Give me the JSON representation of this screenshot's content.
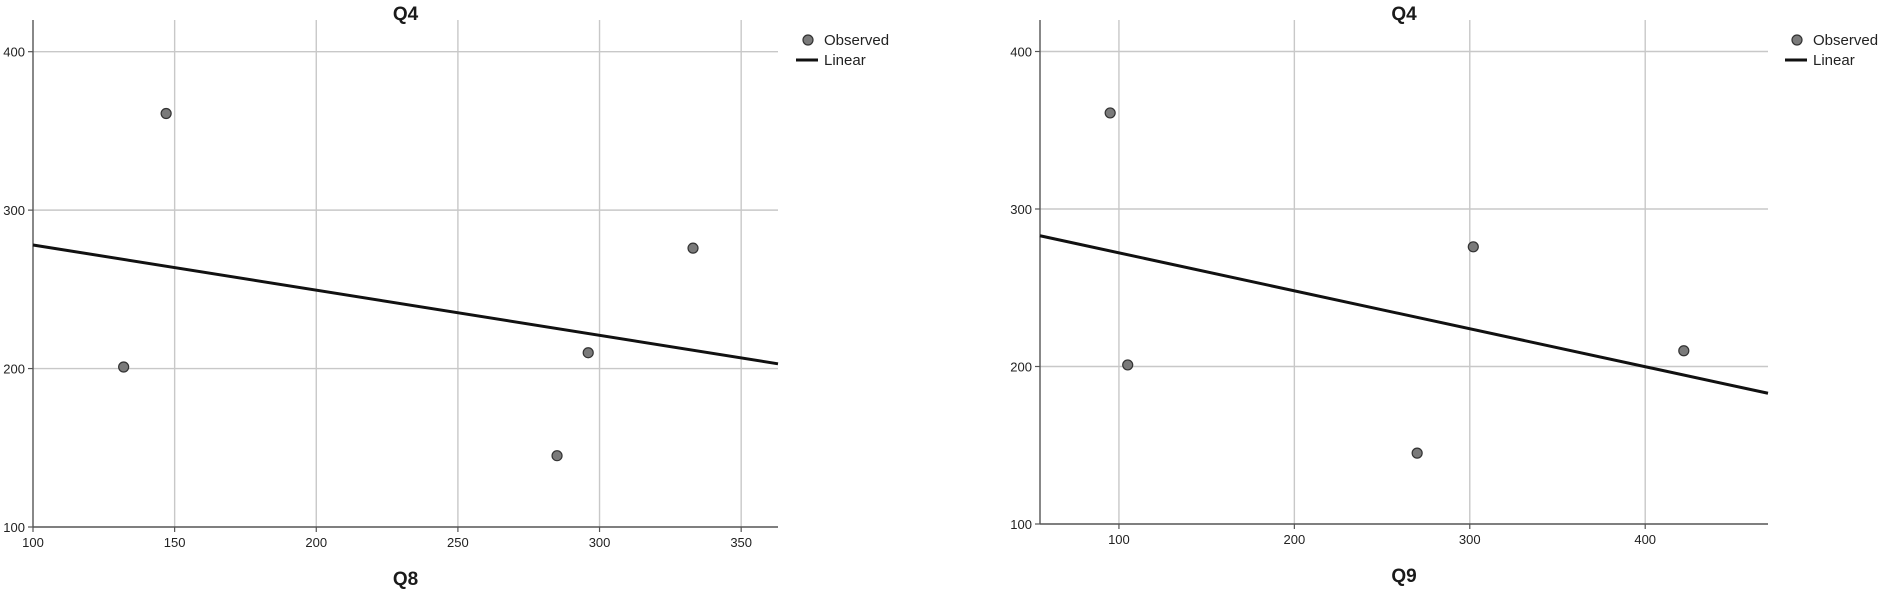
{
  "chart_data": [
    {
      "type": "scatter",
      "title": "Q4",
      "xlabel": "Q8",
      "ylabel": "",
      "xlim": [
        100,
        363
      ],
      "ylim": [
        100,
        420
      ],
      "xticks": [
        100,
        150,
        200,
        250,
        300,
        350
      ],
      "yticks": [
        100,
        200,
        300,
        400
      ],
      "grid": true,
      "legend": {
        "position": "top-right",
        "observed_label": "Observed",
        "linear_label": "Linear"
      },
      "series": [
        {
          "name": "Observed",
          "kind": "points",
          "x": [
            132,
            147,
            285,
            296,
            333
          ],
          "y": [
            201,
            361,
            145,
            210,
            276
          ]
        },
        {
          "name": "Linear",
          "kind": "line",
          "x": [
            100,
            363
          ],
          "y": [
            278,
            203
          ]
        }
      ],
      "colors": {
        "point_fill": "#7a7a7a",
        "point_stroke": "#333333",
        "line": "#111111",
        "grid": "#c8c8c8",
        "axis": "#555555"
      }
    },
    {
      "type": "scatter",
      "title": "Q4",
      "xlabel": "Q9",
      "ylabel": "",
      "xlim": [
        55,
        470
      ],
      "ylim": [
        100,
        420
      ],
      "xticks": [
        100,
        200,
        300,
        400
      ],
      "yticks": [
        100,
        200,
        300,
        400
      ],
      "grid": true,
      "legend": {
        "position": "top-right",
        "observed_label": "Observed",
        "linear_label": "Linear"
      },
      "series": [
        {
          "name": "Observed",
          "kind": "points",
          "x": [
            95,
            105,
            270,
            302,
            422
          ],
          "y": [
            361,
            201,
            145,
            276,
            210
          ]
        },
        {
          "name": "Linear",
          "kind": "line",
          "x": [
            55,
            470
          ],
          "y": [
            283,
            183
          ]
        }
      ],
      "colors": {
        "point_fill": "#7a7a7a",
        "point_stroke": "#333333",
        "line": "#111111",
        "grid": "#c8c8c8",
        "axis": "#555555"
      }
    }
  ]
}
